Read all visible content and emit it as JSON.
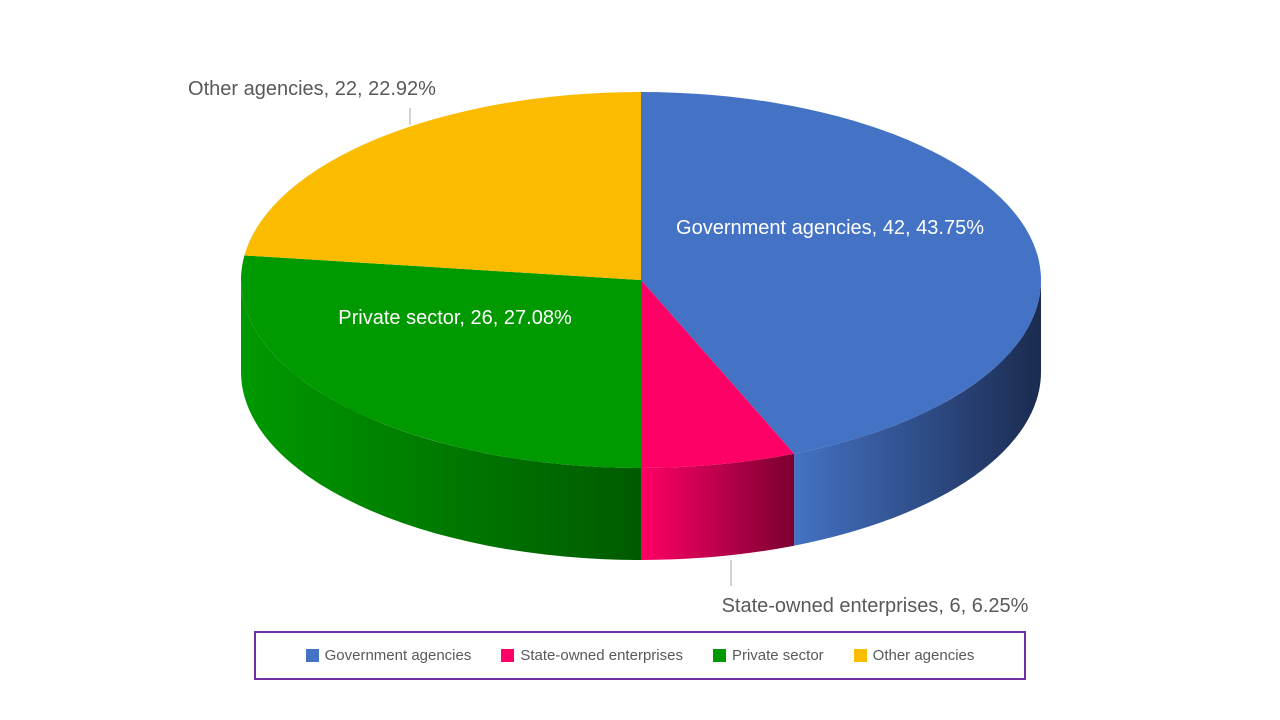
{
  "chart_data": {
    "type": "pie",
    "title": "",
    "series": [
      {
        "name": "Government agencies",
        "value": 42,
        "percent": "43.75%",
        "color": "#4472c4",
        "side_color": "#1b2b50",
        "label": "Government agencies, 42, 43.75%"
      },
      {
        "name": "State-owned enterprises",
        "value": 6,
        "percent": "6.25%",
        "color": "#ff0066",
        "side_color": "#7a0030",
        "label": "State-owned enterprises, 6, 6.25%"
      },
      {
        "name": "Private sector",
        "value": 26,
        "percent": "27.08%",
        "color": "#009900",
        "side_color": "#005a00",
        "label": "Private sector, 26, 27.08%"
      },
      {
        "name": "Other agencies",
        "value": 22,
        "percent": "22.92%",
        "color": "#fbbc00",
        "side_color": "#9a7300",
        "label": "Other agencies, 22, 22.92%"
      }
    ],
    "legend_position": "bottom",
    "three_d": true
  },
  "legend": {
    "items": [
      {
        "label": "Government agencies",
        "color": "#4472c4"
      },
      {
        "label": "State-owned enterprises",
        "color": "#ff0066"
      },
      {
        "label": "Private sector",
        "color": "#009900"
      },
      {
        "label": "Other agencies",
        "color": "#fbbc00"
      }
    ]
  }
}
